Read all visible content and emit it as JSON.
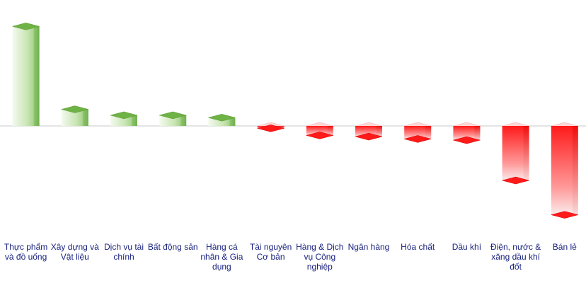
{
  "chart_data": {
    "type": "bar",
    "categories": [
      "Thực phẩm và đồ uống",
      "Xây dựng và Vật liệu",
      "Dịch vụ tài chính",
      "Bất động sản",
      "Hàng cá nhân & Gia dụng",
      "Tài nguyên Cơ bản",
      "Hàng & Dịch vụ Công nghiệp",
      "Ngân hàng",
      "Hóa chất",
      "Dầu khí",
      "Điện, nước & xăng dầu khí đốt",
      "Bán lẻ"
    ],
    "values": [
      4.2,
      0.7,
      0.45,
      0.45,
      0.35,
      -0.1,
      -0.4,
      -0.45,
      -0.55,
      -0.6,
      -2.3,
      -3.75
    ],
    "ylim": [
      -4.5,
      4.5
    ],
    "title": "",
    "xlabel": "",
    "ylabel": "",
    "grid": false,
    "legend": "none",
    "colors": {
      "positive": "#5fa83a",
      "positive_light": "#eef7e6",
      "negative": "#ff1a1a",
      "negative_light": "#fbe9e9",
      "baseline": "#c8c8c8",
      "label": "#1a237e"
    }
  }
}
